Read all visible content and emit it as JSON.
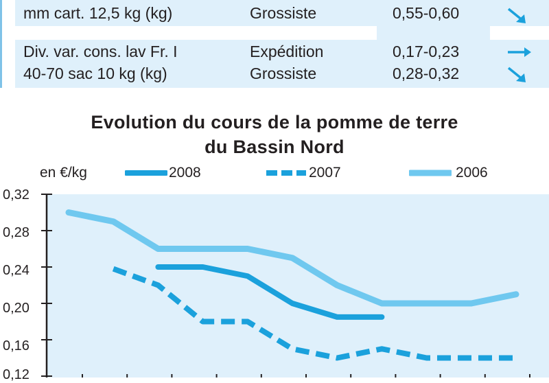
{
  "table": {
    "rows": [
      {
        "product": "mm cart. 12,5 kg (kg)",
        "stage": "Grossiste",
        "price": "0,55-0,60",
        "trend": "down"
      },
      {
        "product": "Div. var. cons. lav Fr. I",
        "stage": "Expédition",
        "price": "0,17-0,23",
        "trend": "stable"
      },
      {
        "product": "40-70 sac 10 kg (kg)",
        "stage": "Grossiste",
        "price": "0,28-0,32",
        "trend": "down"
      }
    ]
  },
  "chart_data": {
    "type": "line",
    "title_line1": "Evolution du cours de la pomme de terre",
    "title_line2": "du Bassin Nord",
    "unit": "en €/kg",
    "ylim": [
      0.12,
      0.32
    ],
    "y_ticks": [
      "0,32",
      "0,28",
      "0,24",
      "0,20",
      "0,16",
      "0,12"
    ],
    "x_count": 11,
    "series": [
      {
        "name": "2008",
        "color": "#1ba1dc",
        "style": "solid",
        "width": 8,
        "points": [
          [
            3,
            0.24
          ],
          [
            4,
            0.24
          ],
          [
            5,
            0.23
          ],
          [
            6,
            0.2
          ],
          [
            7,
            0.185
          ],
          [
            8,
            0.185
          ]
        ]
      },
      {
        "name": "2007",
        "color": "#1ba1dc",
        "style": "dashed",
        "width": 8,
        "points": [
          [
            2,
            0.238
          ],
          [
            3,
            0.22
          ],
          [
            4,
            0.18
          ],
          [
            5,
            0.18
          ],
          [
            6,
            0.15
          ],
          [
            7,
            0.14
          ],
          [
            8,
            0.15
          ],
          [
            9,
            0.14
          ],
          [
            10,
            0.14
          ],
          [
            11,
            0.14
          ]
        ]
      },
      {
        "name": "2006",
        "color": "#6fc8ef",
        "style": "solid",
        "width": 9,
        "points": [
          [
            1,
            0.3
          ],
          [
            2,
            0.29
          ],
          [
            3,
            0.26
          ],
          [
            4,
            0.26
          ],
          [
            5,
            0.26
          ],
          [
            6,
            0.25
          ],
          [
            7,
            0.22
          ],
          [
            8,
            0.2
          ],
          [
            9,
            0.2
          ],
          [
            10,
            0.2
          ],
          [
            11,
            0.21
          ]
        ]
      }
    ],
    "grid": false,
    "legend_position": "top"
  }
}
